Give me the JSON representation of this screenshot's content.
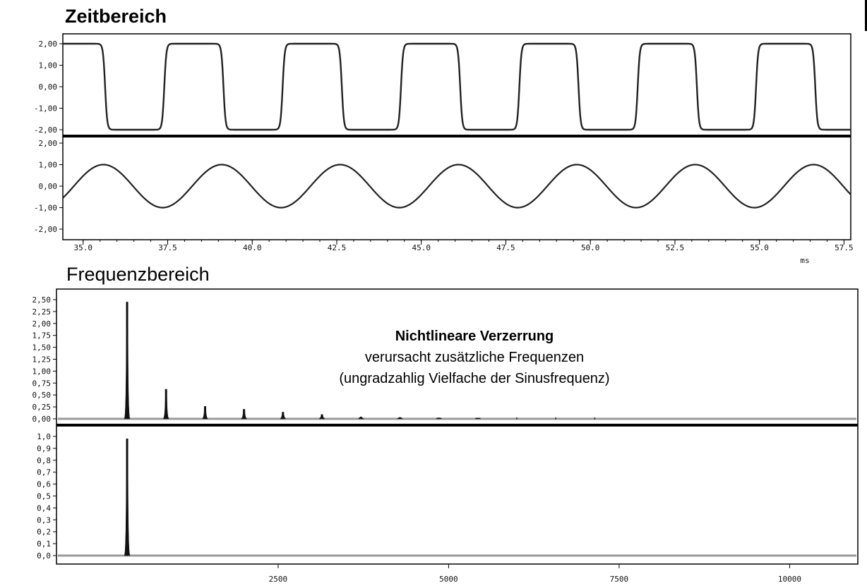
{
  "time_domain": {
    "title": "Zeitbereich",
    "x_unit": "ms"
  },
  "frequency_domain": {
    "title": "Frequenzbereich",
    "annotation": {
      "line1": "Nichtlineare Verzerrung",
      "line2": "verursacht zusätzliche Frequenzen",
      "line3": "(ungradzahlig Vielfache der Sinusfrequenz)"
    }
  },
  "chart_data": [
    {
      "type": "line",
      "name": "time-square",
      "description_free": true,
      "x_range": [
        34.4,
        57.7
      ],
      "ylim": [
        -2.5,
        2.5
      ],
      "period": 3.5,
      "amplitude": 2.0,
      "rising_edge_at": 33.9,
      "yticks": [
        "2,00",
        "1,00",
        "0,00",
        "-1,00",
        "-2,00"
      ],
      "ytick_values": [
        2,
        1,
        0,
        -1,
        -2
      ],
      "xticks": [
        "35.0",
        "37.5",
        "40.0",
        "42.5",
        "45.0",
        "47.5",
        "50.0",
        "52.5",
        "55.0",
        "57.5"
      ],
      "xtick_values": [
        35.0,
        37.5,
        40.0,
        42.5,
        45.0,
        47.5,
        50.0,
        52.5,
        55.0,
        57.5
      ],
      "grid": false
    },
    {
      "type": "line",
      "name": "time-sine",
      "x_range": [
        34.4,
        57.7
      ],
      "ylim": [
        -2.5,
        2.5
      ],
      "period": 3.5,
      "amplitude": 1.0,
      "peak_at": 35.6,
      "yticks": [
        "2,00",
        "1,00",
        "0,00",
        "-1,00",
        "-2,00"
      ],
      "ytick_values": [
        2,
        1,
        0,
        -1,
        -2
      ],
      "xticks": [
        "35.0",
        "37.5",
        "40.0",
        "42.5",
        "45.0",
        "47.5",
        "50.0",
        "52.5",
        "55.0",
        "57.5"
      ],
      "xtick_values": [
        35.0,
        37.5,
        40.0,
        42.5,
        45.0,
        47.5,
        50.0,
        52.5,
        55.0,
        57.5
      ],
      "xlabel": "ms",
      "grid": false
    },
    {
      "type": "bar",
      "name": "spectrum-square",
      "x_range": [
        -750,
        11000
      ],
      "ylim": [
        0,
        2.6
      ],
      "x": [
        286,
        857,
        1429,
        2000,
        2571,
        3143,
        3714,
        4286,
        4857,
        5429,
        6000,
        6571,
        7143
      ],
      "values": [
        2.45,
        0.62,
        0.26,
        0.2,
        0.14,
        0.09,
        0.04,
        0.03,
        0.02,
        0.015,
        0.012,
        0.01,
        0.008
      ],
      "yticks": [
        "2,50",
        "2,25",
        "2,00",
        "1,75",
        "1,50",
        "1,25",
        "1,00",
        "0,75",
        "0,50",
        "0,25",
        "0,00"
      ],
      "ytick_values": [
        2.5,
        2.25,
        2.0,
        1.75,
        1.5,
        1.25,
        1.0,
        0.75,
        0.5,
        0.25,
        0.0
      ],
      "grid": false
    },
    {
      "type": "bar",
      "name": "spectrum-sine",
      "x_range": [
        -750,
        11000
      ],
      "ylim": [
        0,
        1.05
      ],
      "x": [
        286
      ],
      "values": [
        0.98
      ],
      "yticks": [
        "1,0",
        "0,9",
        "0,8",
        "0,7",
        "0,6",
        "0,5",
        "0,4",
        "0,3",
        "0,2",
        "0,1",
        "0,0"
      ],
      "ytick_values": [
        1.0,
        0.9,
        0.8,
        0.7,
        0.6,
        0.5,
        0.4,
        0.3,
        0.2,
        0.1,
        0.0
      ],
      "xticks": [
        "2500",
        "5000",
        "7500",
        "10000"
      ],
      "xtick_values": [
        2500,
        5000,
        7500,
        10000
      ],
      "grid": false
    }
  ]
}
